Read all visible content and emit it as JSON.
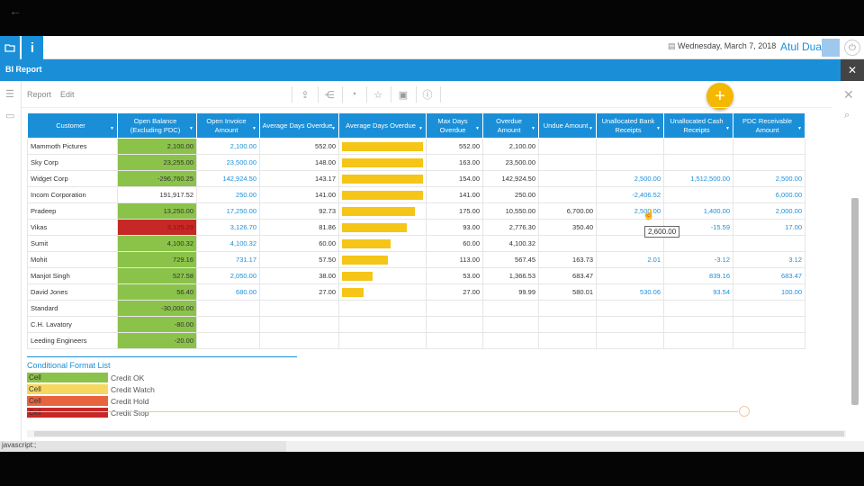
{
  "app": {
    "date": "Wednesday, March 7, 2018",
    "user": "Atul Dua",
    "info_label": "i",
    "report_title": "BI Report"
  },
  "toolbar": {
    "report_label": "Report",
    "edit_label": "Edit"
  },
  "table": {
    "headers": [
      "Customer",
      "Open Balance (Excluding PDC)",
      "Open Invoice Amount",
      "Average Days Overdue",
      "Average Days Overdue",
      "Max Days Overdue",
      "Overdue Amount",
      "Undue Amount",
      "Unallocated Bank Receipts",
      "Unallocated Cash Receipts",
      "PDC Receivable Amount"
    ],
    "rows": [
      {
        "customer": "Mammoth Pictures",
        "open_balance": "2,100.00",
        "status": "ok",
        "open_invoice": "2,100.00",
        "avg_days": "552.00",
        "bar": 1.0,
        "max_days": "552.00",
        "overdue": "2,100.00",
        "undue": "",
        "bank": "",
        "cash": "",
        "pdc": ""
      },
      {
        "customer": "Sky Corp",
        "open_balance": "23,255.00",
        "status": "ok",
        "open_invoice": "23,500.00",
        "avg_days": "148.00",
        "bar": 1.0,
        "max_days": "163.00",
        "overdue": "23,500.00",
        "undue": "",
        "bank": "",
        "cash": "",
        "pdc": ""
      },
      {
        "customer": "Widget Corp",
        "open_balance": "-296,760.25",
        "status": "ok",
        "open_invoice": "142,924.50",
        "avg_days": "143.17",
        "bar": 1.0,
        "max_days": "154.00",
        "overdue": "142,924.50",
        "undue": "",
        "bank": "2,500.00",
        "cash": "1,512,500.00",
        "pdc": "2,500.00"
      },
      {
        "customer": "Incom Corporation",
        "open_balance": "191,917.52",
        "status": "none",
        "open_invoice": "250.00",
        "avg_days": "141.00",
        "bar": 1.0,
        "max_days": "141.00",
        "overdue": "250.00",
        "undue": "",
        "bank": "-2,406.52",
        "cash": "",
        "pdc": "6,000.00"
      },
      {
        "customer": "Pradeep",
        "open_balance": "13,250.00",
        "status": "ok",
        "open_invoice": "17,250.00",
        "avg_days": "92.73",
        "bar": 0.9,
        "max_days": "175.00",
        "overdue": "10,550.00",
        "undue": "6,700.00",
        "bank": "2,500.00",
        "cash": "1,400.00",
        "pdc": "2,000.00"
      },
      {
        "customer": "Vikas",
        "open_balance": "3,125.29",
        "status": "stop",
        "open_invoice": "3,126.70",
        "avg_days": "81.86",
        "bar": 0.8,
        "max_days": "93.00",
        "overdue": "2,776.30",
        "undue": "350.40",
        "bank": "",
        "cash": "-15.59",
        "pdc": "17.00"
      },
      {
        "customer": "Sumit",
        "open_balance": "4,100.32",
        "status": "ok",
        "open_invoice": "4,100.32",
        "avg_days": "60.00",
        "bar": 0.6,
        "max_days": "60.00",
        "overdue": "4,100.32",
        "undue": "",
        "bank": "",
        "cash": "",
        "pdc": ""
      },
      {
        "customer": "Mohit",
        "open_balance": "729.16",
        "status": "ok",
        "open_invoice": "731.17",
        "avg_days": "57.50",
        "bar": 0.57,
        "max_days": "113.00",
        "overdue": "567.45",
        "undue": "163.73",
        "bank": "2.01",
        "cash": "-3.12",
        "pdc": "3.12"
      },
      {
        "customer": "Manjot Singh",
        "open_balance": "527.58",
        "status": "ok",
        "open_invoice": "2,050.00",
        "avg_days": "38.00",
        "bar": 0.38,
        "max_days": "53.00",
        "overdue": "1,366.53",
        "undue": "683.47",
        "bank": "",
        "cash": "839.16",
        "pdc": "683.47"
      },
      {
        "customer": "David Jones",
        "open_balance": "56.40",
        "status": "ok",
        "open_invoice": "680.00",
        "avg_days": "27.00",
        "bar": 0.27,
        "max_days": "27.00",
        "overdue": "99.99",
        "undue": "580.01",
        "bank": "530.06",
        "cash": "93.54",
        "pdc": "100.00"
      },
      {
        "customer": "Standard",
        "open_balance": "-30,000.00",
        "status": "ok",
        "open_invoice": "",
        "avg_days": "",
        "bar": 0,
        "max_days": "",
        "overdue": "",
        "undue": "",
        "bank": "",
        "cash": "",
        "pdc": ""
      },
      {
        "customer": "C.H. Lavatory",
        "open_balance": "-80.00",
        "status": "ok",
        "open_invoice": "",
        "avg_days": "",
        "bar": 0,
        "max_days": "",
        "overdue": "",
        "undue": "",
        "bank": "",
        "cash": "",
        "pdc": ""
      },
      {
        "customer": "Leeding Engineers",
        "open_balance": "-20.00",
        "status": "ok",
        "open_invoice": "",
        "avg_days": "",
        "bar": 0,
        "max_days": "",
        "overdue": "",
        "undue": "",
        "bank": "",
        "cash": "",
        "pdc": ""
      }
    ]
  },
  "tooltip": "2,600.00",
  "legend": {
    "title": "Conditional Format List",
    "items": [
      {
        "cell": "Cell",
        "label": "Credit OK",
        "color": "#8bc34a"
      },
      {
        "cell": "Cell",
        "label": "Credit Watch",
        "color": "#f6d860"
      },
      {
        "cell": "Cell",
        "label": "Credit Hold",
        "color": "#e8643e"
      },
      {
        "cell": "Cell",
        "label": "Credit Stop",
        "color": "#c62828"
      }
    ]
  },
  "status_text": "javascript:;",
  "colors": {
    "accent": "#1a8fd8",
    "fab": "#f5b800",
    "bar": "#f5c518"
  }
}
